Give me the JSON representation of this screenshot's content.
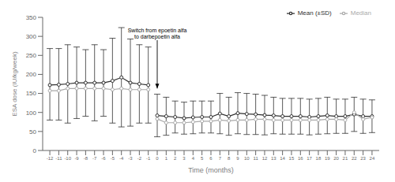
{
  "chart_data": {
    "type": "line",
    "xlabel": "Time (months)",
    "ylabel": "ESA dose (IU/kg/week)",
    "x": [
      -12,
      -11,
      -10,
      -9,
      -8,
      -7,
      -6,
      -5,
      -4,
      -3,
      -2,
      -1,
      0,
      1,
      2,
      3,
      4,
      5,
      6,
      7,
      8,
      9,
      10,
      11,
      12,
      13,
      14,
      15,
      16,
      17,
      18,
      19,
      20,
      21,
      22,
      23,
      24
    ],
    "xlim": [
      -12.8,
      24.8
    ],
    "xticks": [
      -12,
      -11,
      -10,
      -9,
      -8,
      -7,
      -6,
      -5,
      -4,
      -3,
      -2,
      -1,
      0,
      1,
      2,
      3,
      4,
      5,
      6,
      7,
      8,
      9,
      10,
      11,
      12,
      13,
      14,
      15,
      16,
      17,
      18,
      19,
      20,
      21,
      22,
      23,
      24
    ],
    "ylim": [
      0,
      350
    ],
    "yticks": [
      0,
      50,
      100,
      150,
      200,
      250,
      300,
      350
    ],
    "grid": false,
    "legend": "upper right",
    "series": [
      {
        "name": "Mean (±SD)",
        "color": "#303030",
        "marker": "circle",
        "values": [
          172,
          173,
          175,
          178,
          178,
          178,
          178,
          183,
          192,
          178,
          175,
          172,
          92,
          90,
          88,
          85,
          87,
          88,
          88,
          97,
          90,
          98,
          96,
          95,
          93,
          92,
          90,
          90,
          90,
          88,
          90,
          92,
          90,
          90,
          95,
          90,
          90
        ],
        "sd_upper": [
          268,
          268,
          278,
          272,
          265,
          278,
          265,
          295,
          323,
          293,
          278,
          272,
          148,
          140,
          130,
          127,
          130,
          130,
          130,
          150,
          140,
          152,
          150,
          148,
          145,
          140,
          137,
          137,
          137,
          135,
          137,
          140,
          135,
          135,
          140,
          135,
          133
        ],
        "sd_lower": [
          80,
          80,
          72,
          84,
          90,
          78,
          90,
          72,
          62,
          64,
          72,
          72,
          36,
          40,
          46,
          43,
          44,
          46,
          46,
          44,
          40,
          44,
          42,
          42,
          41,
          44,
          43,
          43,
          43,
          41,
          43,
          44,
          45,
          45,
          50,
          45,
          47
        ]
      },
      {
        "name": "Median",
        "color": "#aaaaaa",
        "marker": "circle",
        "values": [
          157,
          157,
          163,
          163,
          163,
          163,
          163,
          160,
          163,
          160,
          160,
          160,
          83,
          73,
          73,
          73,
          75,
          77,
          77,
          80,
          78,
          80,
          80,
          82,
          82,
          80,
          80,
          80,
          80,
          80,
          80,
          82,
          82,
          80,
          100,
          82,
          87
        ]
      }
    ],
    "annotations": [
      {
        "text": "Switch from epoetin alfa\nto darbepoetin alfa",
        "x": 0,
        "y": 163,
        "text_y": 290
      }
    ]
  }
}
